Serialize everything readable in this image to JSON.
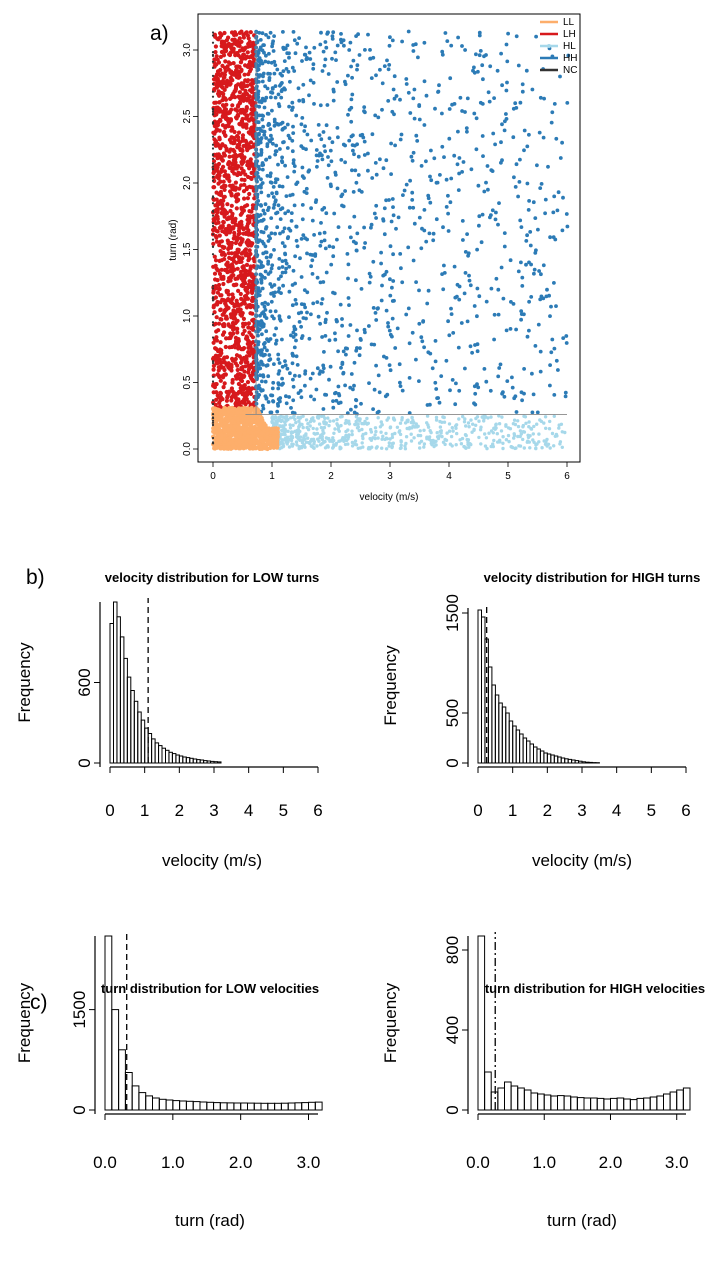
{
  "panel_labels": {
    "a": "a)",
    "b": "b)",
    "c": "c)"
  },
  "colors": {
    "LL": "#fdae6b",
    "LH": "#d7191c",
    "HL": "#a6d8ea",
    "HH": "#2c7bb6",
    "NC": "#333333"
  },
  "chart_data": [
    {
      "id": "scatter",
      "type": "scatter",
      "title": "",
      "xlabel": "velocity (m/s)",
      "ylabel": "turn (rad)",
      "xlim": [
        0,
        6
      ],
      "ylim": [
        0,
        3.14
      ],
      "xticks": [
        "0",
        "1",
        "2",
        "3",
        "4",
        "5",
        "6"
      ],
      "yticks": [
        "0.0",
        "0.5",
        "1.0",
        "1.5",
        "2.0",
        "2.5",
        "3.0"
      ],
      "velocity_threshold": 0.73,
      "turn_threshold": 0.26,
      "legend_position": "top-right",
      "legend": [
        "LL",
        "LH",
        "HL",
        "HH",
        "NC"
      ],
      "series": [
        {
          "name": "LL",
          "region": "velocity < 1.1, turn < 0.3"
        },
        {
          "name": "LH",
          "region": "velocity < 0.73, turn > 0.3"
        },
        {
          "name": "HL",
          "region": "velocity > 1.0, turn < 0.26"
        },
        {
          "name": "HH",
          "region": "velocity > 0.73, turn > 0.26"
        },
        {
          "name": "NC",
          "region": "velocity = 0"
        }
      ]
    },
    {
      "id": "vel_low",
      "type": "bar",
      "title": "velocity distribution for LOW turns",
      "xlabel": "velocity (m/s)",
      "ylabel": "Frequency",
      "xlim": [
        0,
        6
      ],
      "ylim": [
        0,
        1200
      ],
      "xticks": [
        "0",
        "1",
        "2",
        "3",
        "4",
        "5",
        "6"
      ],
      "yticks": [
        "0",
        "600"
      ],
      "bin_width": 0.1,
      "threshold_line": 1.1,
      "values": [
        1040,
        1200,
        1090,
        940,
        780,
        640,
        540,
        460,
        380,
        320,
        260,
        220,
        180,
        150,
        130,
        110,
        95,
        80,
        70,
        60,
        52,
        45,
        40,
        35,
        30,
        25,
        22,
        18,
        15,
        12,
        10,
        8
      ]
    },
    {
      "id": "vel_high",
      "type": "bar",
      "title": "velocity distribution for HIGH turns",
      "xlabel": "velocity (m/s)",
      "ylabel": "Frequency",
      "xlim": [
        0,
        6
      ],
      "ylim": [
        0,
        1550
      ],
      "xticks": [
        "0",
        "1",
        "2",
        "3",
        "4",
        "5",
        "6"
      ],
      "yticks": [
        "0",
        "500",
        "1500"
      ],
      "bin_width": 0.1,
      "threshold_line": 0.25,
      "values": [
        1530,
        1460,
        1240,
        960,
        780,
        680,
        600,
        560,
        500,
        420,
        370,
        330,
        290,
        250,
        220,
        190,
        160,
        140,
        120,
        100,
        90,
        80,
        70,
        60,
        50,
        42,
        36,
        30,
        24,
        18,
        12,
        8,
        6,
        4,
        3
      ]
    },
    {
      "id": "turn_low",
      "type": "bar",
      "title": "turn distribution for LOW velocities",
      "xlabel": "turn (rad)",
      "ylabel": "Frequency",
      "xlim": [
        0,
        3.14
      ],
      "ylim": [
        0,
        2600
      ],
      "xticks": [
        "0.0",
        "1.0",
        "2.0",
        "3.0"
      ],
      "yticks": [
        "0",
        "1500"
      ],
      "bin_width": 0.1,
      "threshold_line": 0.32,
      "values": [
        2600,
        1500,
        900,
        560,
        360,
        260,
        210,
        180,
        160,
        150,
        140,
        135,
        130,
        125,
        120,
        115,
        110,
        108,
        106,
        105,
        104,
        103,
        102,
        100,
        100,
        100,
        102,
        105,
        108,
        110,
        115,
        118
      ]
    },
    {
      "id": "turn_high",
      "type": "bar",
      "title": "turn distribution for HIGH velocities",
      "xlabel": "turn (rad)",
      "ylabel": "Frequency",
      "xlim": [
        0,
        3.14
      ],
      "ylim": [
        0,
        870
      ],
      "xticks": [
        "0.0",
        "1.0",
        "2.0",
        "3.0"
      ],
      "yticks": [
        "0",
        "400",
        "800"
      ],
      "bin_width": 0.1,
      "threshold_line": 0.26,
      "values": [
        870,
        190,
        90,
        110,
        140,
        120,
        110,
        100,
        85,
        80,
        75,
        70,
        72,
        70,
        65,
        62,
        60,
        60,
        58,
        55,
        58,
        60,
        55,
        52,
        58,
        60,
        65,
        70,
        80,
        90,
        100,
        110
      ]
    }
  ]
}
